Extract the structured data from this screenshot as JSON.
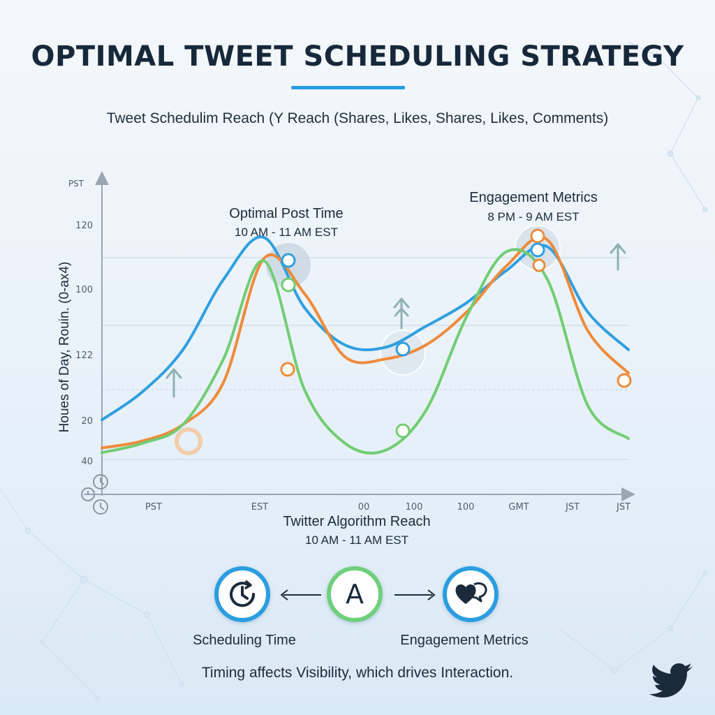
{
  "title": "OPTIMAL TWEET SCHEDULING STRATEGY",
  "subtitle": "Tweet Schedulim Reach (Y Reach (Shares, Likes, Shares, Likes, Comments)",
  "chart_data": {
    "type": "line",
    "ylabel": "Houes of Day, Rouin. (0-ax4)",
    "y_tick_labels": [
      "PST",
      "120",
      "100",
      "122",
      "20",
      "40"
    ],
    "xlabel": "Twitter Algorithm Reach",
    "xlabel_sub": "10 AM - 11 AM EST",
    "x_tick_labels": [
      "PST",
      "EST",
      "00",
      "100",
      "100",
      "GMT",
      "JST",
      "JST"
    ],
    "x": [
      0,
      1,
      2,
      3,
      4,
      5,
      6,
      7,
      8,
      9,
      10,
      11,
      12,
      13
    ],
    "series": [
      {
        "color": "#2f9fe0",
        "values": [
          22,
          34,
          52,
          82,
          100,
          70,
          54,
          53,
          62,
          72,
          86,
          96,
          68,
          52
        ]
      },
      {
        "color": "#ef8a3a",
        "values": [
          10,
          13,
          20,
          38,
          91,
          76,
          49,
          48,
          54,
          68,
          88,
          99,
          60,
          42
        ]
      },
      {
        "color": "#72cc72",
        "values": [
          8,
          12,
          20,
          48,
          90,
          35,
          12,
          9,
          26,
          66,
          94,
          82,
          28,
          14
        ]
      }
    ],
    "annotations": [
      {
        "title": "Optimal Post Time",
        "text": "10 AM - 11 AM EST"
      },
      {
        "title": "Engagement Metrics",
        "text": "8 PM - 9 AM EST"
      }
    ],
    "grid": true
  },
  "flow": {
    "left_label": "Scheduling Time",
    "center_letter": "A",
    "right_label": "Engagement Metrics"
  },
  "footer": "Timing affects Visibility, which drives Interaction.",
  "colors": {
    "blue": "#2b9de0",
    "orange": "#ef8a3a",
    "green": "#6fcf7a",
    "text": "#1b2b3b"
  },
  "icons": [
    "clock-icon",
    "engagement-hearts-icon",
    "twitter-bird-icon",
    "up-arrow-icon"
  ]
}
